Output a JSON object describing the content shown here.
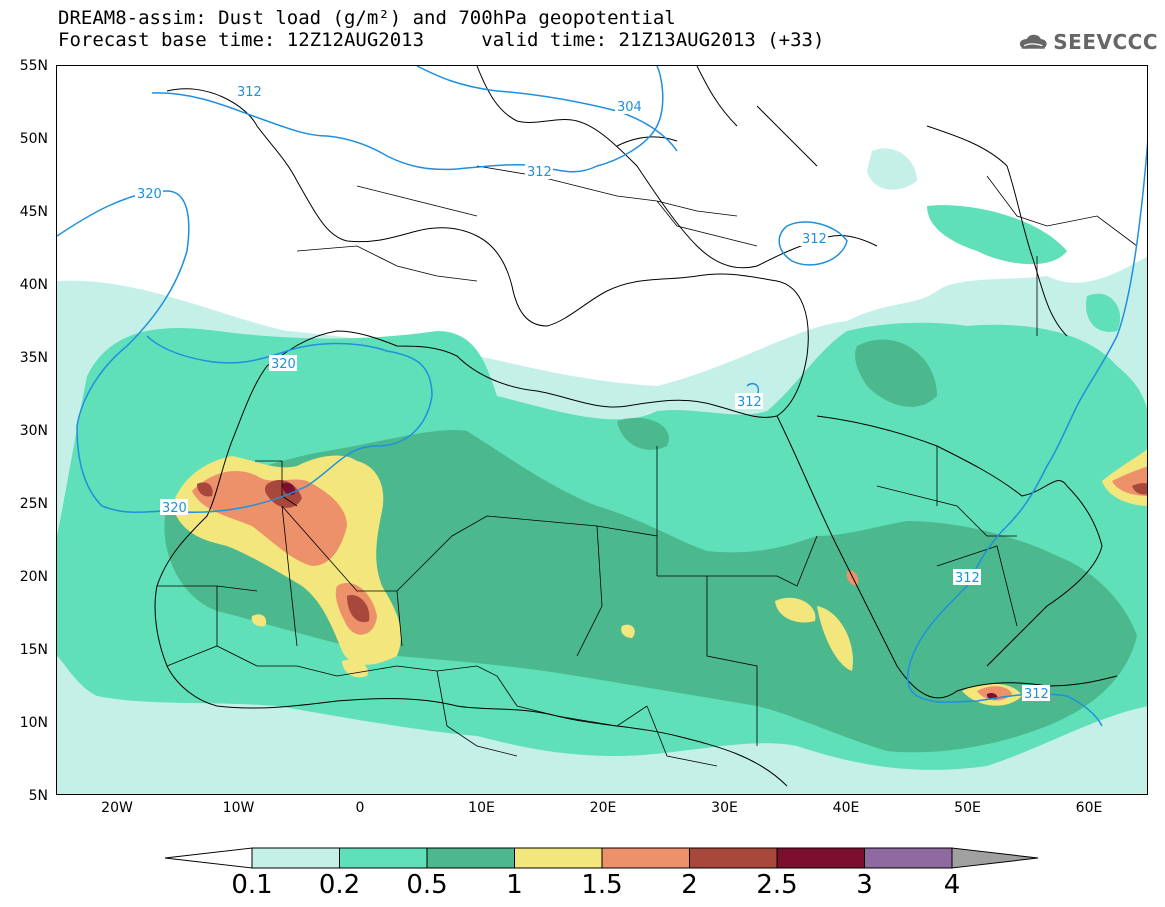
{
  "title": {
    "line1": "DREAM8-assim: Dust load (g/m²) and 700hPa geopotential",
    "forecast": "Forecast base time: 12Z12AUG2013",
    "valid": "valid time: 21Z13AUG2013 (+33)"
  },
  "logo": {
    "text": "SEEVCCC",
    "icon": "cloud-logo-icon"
  },
  "axes": {
    "lat_labels": [
      "55N",
      "50N",
      "45N",
      "40N",
      "35N",
      "30N",
      "25N",
      "20N",
      "15N",
      "10N",
      "5N"
    ],
    "lon_labels": [
      "20W",
      "10W",
      "0",
      "10E",
      "20E",
      "30E",
      "40E",
      "50E",
      "60E"
    ]
  },
  "contours": {
    "labels": [
      "312",
      "304",
      "312",
      "320",
      "312",
      "320",
      "312",
      "320",
      "312",
      "312"
    ],
    "color": "#1e90e0"
  },
  "colorbar": {
    "labels": [
      "0.1",
      "0.2",
      "0.5",
      "1",
      "1.5",
      "2",
      "2.5",
      "3",
      "4"
    ],
    "colors": [
      "#c5f0e8",
      "#5fe0b8",
      "#4cb88e",
      "#f2e67c",
      "#ec916a",
      "#a8483c",
      "#7c0f2e",
      "#8e6aa0",
      "#a0a0a0"
    ],
    "under_color": "#ffffff"
  },
  "chart_data": {
    "type": "heatmap",
    "title": "DREAM8-assim: Dust load (g/m²) and 700hPa geopotential",
    "xlabel": "",
    "ylabel": "",
    "xlim": [
      -25,
      65
    ],
    "ylim": [
      5,
      55
    ],
    "x_ticks": [
      "20W",
      "10W",
      "0",
      "10E",
      "20E",
      "30E",
      "40E",
      "50E",
      "60E"
    ],
    "y_ticks": [
      "55N",
      "50N",
      "45N",
      "40N",
      "35N",
      "30N",
      "25N",
      "20N",
      "15N",
      "10N",
      "5N"
    ],
    "levels": [
      0.1,
      0.2,
      0.5,
      1,
      1.5,
      2,
      2.5,
      3,
      4
    ],
    "geopotential_contours": [
      304,
      312,
      320
    ],
    "dust_maxima": [
      {
        "lon": -5.5,
        "lat": 26,
        "value": 3
      },
      {
        "lon": 0.5,
        "lat": 18,
        "value": 2.5
      },
      {
        "lon": 52,
        "lat": 12,
        "value": 2.5
      },
      {
        "lon": 63,
        "lat": 25.5,
        "value": 2.5
      }
    ]
  }
}
